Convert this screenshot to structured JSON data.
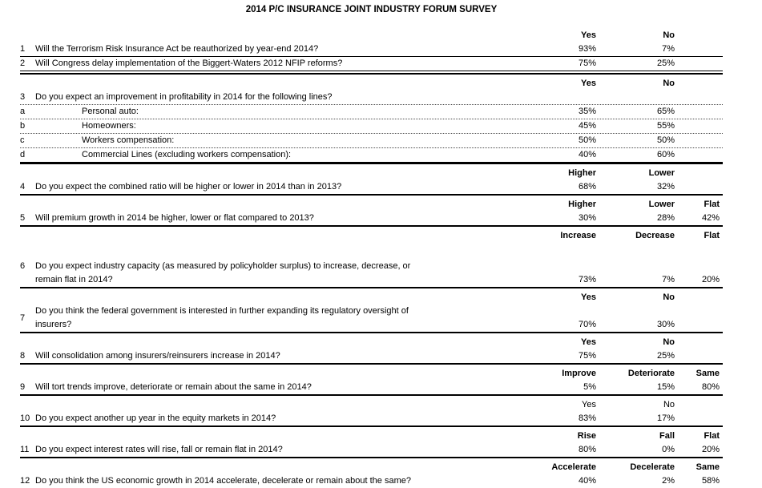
{
  "title": "2014 P/C INSURANCE JOINT INDUSTRY FORUM SURVEY",
  "colors": {
    "text": "#000000",
    "rule": "#000000",
    "background": "#ffffff"
  },
  "survey": {
    "sections": [
      {
        "header": [
          "Yes",
          "No",
          ""
        ],
        "rows": [
          {
            "num": "1",
            "question": "Will the Terrorism Risk Insurance Act be reauthorized by year-end 2014?",
            "values": [
              "93%",
              "7%",
              ""
            ],
            "border": "thin"
          },
          {
            "num": "2",
            "question": "Will Congress delay implementation of the Biggert-Waters 2012 NFIP reforms?",
            "values": [
              "75%",
              "25%",
              ""
            ],
            "border": "double"
          }
        ]
      },
      {
        "header": [
          "Yes",
          "No",
          ""
        ],
        "rows": [
          {
            "num": "3",
            "question": "Do you expect an improvement in profitability in 2014 for the following lines?",
            "values": [
              "",
              "",
              ""
            ],
            "border": "dotted"
          },
          {
            "num": "a",
            "question": "Personal auto:",
            "indent": true,
            "values": [
              "35%",
              "65%",
              ""
            ],
            "border": "dotted"
          },
          {
            "num": "b",
            "question": "Homeowners:",
            "indent": true,
            "values": [
              "45%",
              "55%",
              ""
            ],
            "border": "dotted"
          },
          {
            "num": "c",
            "question": "Workers compensation:",
            "indent": true,
            "values": [
              "50%",
              "50%",
              ""
            ],
            "border": "dotted"
          },
          {
            "num": "d",
            "question": "Commercial Lines (excluding workers compensation):",
            "indent": true,
            "values": [
              "40%",
              "60%",
              ""
            ],
            "border": "thick"
          }
        ]
      },
      {
        "header": [
          "Higher",
          "Lower",
          ""
        ],
        "rows": [
          {
            "num": "4",
            "question": "Do you expect the combined ratio will be higher or lower in 2014 than in 2013?",
            "values": [
              "68%",
              "32%",
              ""
            ],
            "border": "solid"
          }
        ]
      },
      {
        "header": [
          "Higher",
          "Lower",
          "Flat"
        ],
        "rows": [
          {
            "num": "5",
            "question": "Will premium growth in 2014 be higher, lower or flat compared to 2013?",
            "values": [
              "30%",
              "28%",
              "42%"
            ],
            "border": "solid"
          }
        ]
      },
      {
        "header": [
          "Increase",
          "Decrease",
          "Flat"
        ],
        "gap": true,
        "rows": [
          {
            "num": "6",
            "num_pos": "top",
            "question": "Do you expect industry capacity (as measured by policyholder surplus) to increase, decrease, or\nremain flat in 2014?",
            "values": [
              "73%",
              "7%",
              "20%"
            ],
            "border": "solid"
          }
        ]
      },
      {
        "header": [
          "Yes",
          "No",
          ""
        ],
        "rows": [
          {
            "num": "7",
            "num_pos": "middle",
            "question": "Do you think the federal government is interested in further expanding its regulatory oversight of\ninsurers?",
            "values": [
              "70%",
              "30%",
              ""
            ],
            "border": "solid"
          }
        ]
      },
      {
        "header": [
          "Yes",
          "No",
          ""
        ],
        "rows": [
          {
            "num": "8",
            "question": "Will consolidation among insurers/reinsurers increase in 2014?",
            "values": [
              "75%",
              "25%",
              ""
            ],
            "border": "solid"
          }
        ]
      },
      {
        "header": [
          "Improve",
          "Deteriorate",
          "Same"
        ],
        "rows": [
          {
            "num": "9",
            "question": "Will tort trends improve, deteriorate or remain about the same in 2014?",
            "values": [
              "5%",
              "15%",
              "80%"
            ],
            "border": "solid"
          }
        ]
      },
      {
        "header": [
          "Yes",
          "No",
          ""
        ],
        "header_bold": false,
        "rows": [
          {
            "num": "10",
            "question": "Do you expect another up year in the equity markets in 2014?",
            "values": [
              "83%",
              "17%",
              ""
            ],
            "border": "solid"
          }
        ]
      },
      {
        "header": [
          "Rise",
          "Fall",
          "Flat"
        ],
        "rows": [
          {
            "num": "11",
            "question": "Do you expect interest rates will rise, fall or remain flat in 2014?",
            "values": [
              "80%",
              "0%",
              "20%"
            ],
            "border": "solid"
          }
        ]
      },
      {
        "header": [
          "Accelerate",
          "Decelerate",
          "Same"
        ],
        "rows": [
          {
            "num": "12",
            "question": "Do you think the US economic growth in 2014 accelerate, decelerate or remain about the same?",
            "values": [
              "40%",
              "2%",
              "58%"
            ],
            "border": "thick"
          }
        ]
      }
    ]
  }
}
